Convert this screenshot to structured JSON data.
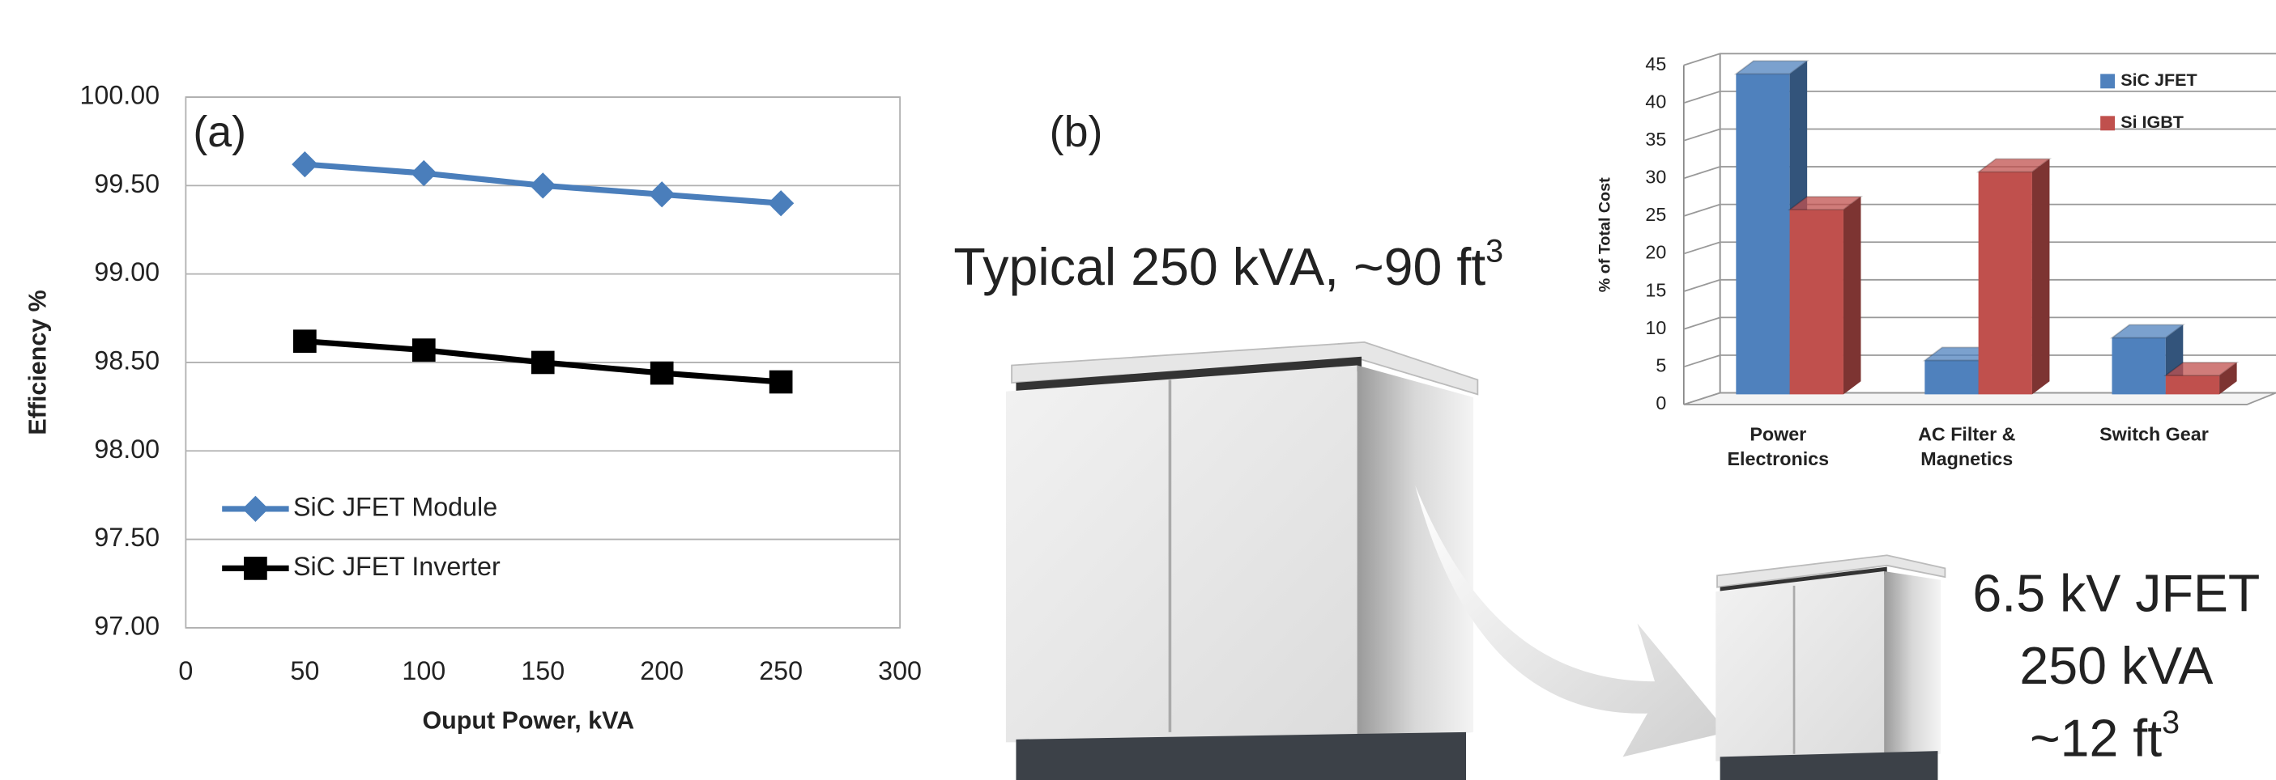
{
  "panel_labels": {
    "a": "(a)",
    "b": "(b)"
  },
  "large_unit": {
    "text": "Typical 250 kVA, ~90 ft",
    "superscript": "3"
  },
  "small_unit": {
    "line1": "6.5 kV JFET",
    "line2": "250 kVA",
    "line3": "~12 ft",
    "superscript": "3"
  },
  "chart_data": [
    {
      "type": "line",
      "y_label": "Efficiency %",
      "x_label": "Ouput Power, kVA",
      "x": [
        50,
        100,
        150,
        200,
        250
      ],
      "xlim": [
        0,
        300
      ],
      "xticks": [
        0,
        50,
        100,
        150,
        200,
        250,
        300
      ],
      "ylim": [
        97,
        100
      ],
      "yticks": [
        {
          "value": 97,
          "label": "97.00"
        },
        {
          "value": 97.5,
          "label": "97.50"
        },
        {
          "value": 98,
          "label": "98.00"
        },
        {
          "value": 98.5,
          "label": "98.50"
        },
        {
          "value": 99,
          "label": "99.00"
        },
        {
          "value": 99.5,
          "label": "99.50"
        },
        {
          "value": 100,
          "label": "100.00"
        }
      ],
      "grid": true,
      "legend": "lower left",
      "series": [
        {
          "name": "SiC JFET Module",
          "color": "#4a7ebb",
          "marker": "diamond",
          "values": [
            99.62,
            99.57,
            99.5,
            99.45,
            99.4
          ]
        },
        {
          "name": "SiC JFET Inverter",
          "color": "#000000",
          "marker": "square",
          "values": [
            98.62,
            98.57,
            98.5,
            98.44,
            98.39
          ]
        }
      ]
    },
    {
      "type": "bar3d",
      "y_label": "% of Total Cost",
      "categories": [
        "Power Electronics",
        "AC Filter & Magnetics",
        "Switch Gear"
      ],
      "ylim": [
        0,
        45
      ],
      "yticks": [
        0,
        5,
        10,
        15,
        20,
        25,
        30,
        35,
        40,
        45
      ],
      "grid": true,
      "legend": "upper right",
      "series": [
        {
          "name": "SiC JFET",
          "color": "#4f81bd",
          "values": [
            42.5,
            4.5,
            7.5
          ]
        },
        {
          "name": "Si IGBT",
          "color": "#c0504d",
          "values": [
            24.5,
            29.5,
            2.5
          ]
        }
      ]
    }
  ]
}
